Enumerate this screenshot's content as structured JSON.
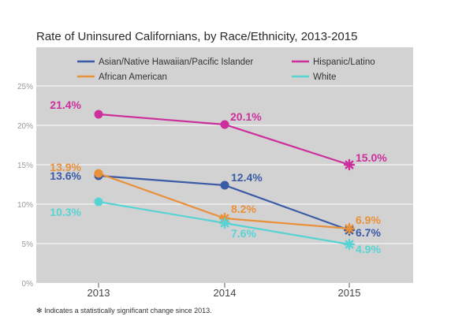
{
  "chart_data": {
    "type": "line",
    "title": "Rate of Uninsured Californians, by Race/Ethnicity, 2013-2015",
    "categories": [
      "2013",
      "2014",
      "2015"
    ],
    "y_ticks": [
      "0%",
      "5%",
      "10%",
      "15%",
      "20%",
      "25%"
    ],
    "ylim": [
      0,
      25
    ],
    "grid": true,
    "legend_position": "top",
    "background_color": "#d2d2d2",
    "series": [
      {
        "name": "Asian/Native Hawaiian/Pacific Islander",
        "color": "#3a5ba5",
        "values": [
          13.6,
          12.4,
          6.7
        ],
        "labels": [
          "13.6%",
          "12.4%",
          "6.7%"
        ],
        "significant": [
          false,
          false,
          true
        ]
      },
      {
        "name": "Hispanic/Latino",
        "color": "#cc2f9b",
        "values": [
          21.4,
          20.1,
          15.0
        ],
        "labels": [
          "21.4%",
          "20.1%",
          "15.0%"
        ],
        "significant": [
          false,
          false,
          true
        ]
      },
      {
        "name": "African American",
        "color": "#e8913a",
        "values": [
          13.9,
          8.2,
          6.9
        ],
        "labels": [
          "13.9%",
          "8.2%",
          "6.9%"
        ],
        "significant": [
          false,
          true,
          true
        ]
      },
      {
        "name": "White",
        "color": "#57d3d4",
        "values": [
          10.3,
          7.6,
          4.9
        ],
        "labels": [
          "10.3%",
          "7.6%",
          "4.9%"
        ],
        "significant": [
          false,
          true,
          true
        ]
      }
    ],
    "footnote": "Indicates a statistically significant change since 2013.",
    "footnote_symbol": "✻"
  }
}
